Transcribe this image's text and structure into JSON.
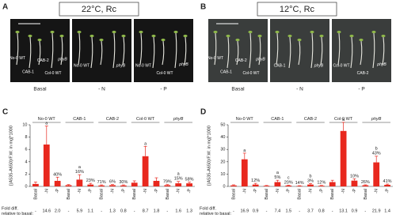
{
  "panels": [
    {
      "letter": "A",
      "title": "22°C, Rc",
      "photos": [
        {
          "caption": "Basal",
          "labels": [
            "No-0 WT",
            "CAB-1",
            "CAB-2",
            "Col-0 WT",
            "phyB"
          ]
        },
        {
          "caption": "- N",
          "labels": [
            "No-0 WT",
            "phyB"
          ]
        },
        {
          "caption": "- P",
          "labels": [
            "No-0 WT",
            "Col-0 WT",
            "phyB"
          ]
        }
      ]
    },
    {
      "letter": "B",
      "title": "12°C, Rc",
      "photos": [
        {
          "caption": "Basal",
          "labels": [
            "No-0 WT",
            "CAB-1",
            "CAB-2",
            "Col-0 WT",
            "phyB"
          ]
        },
        {
          "caption": "- N",
          "labels": [
            "CAB-1",
            "phyB"
          ]
        },
        {
          "caption": "- P",
          "labels": [
            "Col-0 WT",
            "CAB-2",
            "phyB"
          ]
        }
      ]
    }
  ],
  "chart_data": [
    {
      "type": "bar",
      "letter": "C",
      "y_label": "[(A535-A650)/F.W. in mg]*1000",
      "color": "#e8281e",
      "ylim": [
        0,
        10
      ],
      "yticks": [
        0,
        2,
        4,
        6,
        8,
        10
      ],
      "groups": [
        {
          "name": "No-0 WT"
        },
        {
          "name": "CAB-1"
        },
        {
          "name": "CAB-2"
        },
        {
          "name": "Col-0 WT"
        },
        {
          "name": "phyB",
          "italic": true
        }
      ],
      "categories": [
        "Basal",
        "-N",
        "-P",
        "Basal",
        "-N",
        "-P",
        "Basal",
        "-N",
        "-P",
        "Basal",
        "-N",
        "-P",
        "Basal",
        "-N",
        "-P"
      ],
      "values": [
        0.4,
        6.8,
        0.9,
        0.2,
        1.1,
        0.3,
        0.15,
        0.2,
        0.15,
        0.6,
        4.9,
        0.9,
        0.2,
        0.5,
        0.5
      ],
      "errors": [
        0.3,
        3.0,
        0.6,
        0.1,
        0.8,
        0.2,
        0.1,
        0.1,
        0.1,
        0.3,
        1.6,
        0.5,
        0.1,
        0.3,
        0.2
      ],
      "letters": [
        null,
        "a",
        null,
        null,
        "a",
        null,
        null,
        null,
        null,
        null,
        "a",
        null,
        null,
        "a",
        null
      ],
      "percents": [
        null,
        null,
        "40%",
        null,
        "16%",
        "23%",
        "71%",
        "6%",
        "30%",
        null,
        null,
        null,
        "79%",
        "15%",
        "58%"
      ],
      "fold_label": [
        "Fold diff.",
        "relative to basal:"
      ],
      "fold_diff": [
        "-",
        "14.6",
        "2.0",
        "-",
        "5.9",
        "1.1",
        "-",
        "1.3",
        "0.8",
        "-",
        "8.7",
        "1.8",
        "-",
        "1.6",
        "1.3"
      ]
    },
    {
      "type": "bar",
      "letter": "D",
      "y_label": "[(A535-A650)/F.W. in mg]*1000",
      "color": "#e8281e",
      "ylim": [
        0,
        50
      ],
      "yticks": [
        0,
        10,
        20,
        30,
        40,
        50
      ],
      "groups": [
        {
          "name": "No-0 WT"
        },
        {
          "name": "CAB-1"
        },
        {
          "name": "CAB-2"
        },
        {
          "name": "Col-0 WT"
        },
        {
          "name": "phyB",
          "italic": true
        }
      ],
      "categories": [
        "Basal",
        "-N",
        "-P",
        "Basal",
        "-N",
        "-P",
        "Basal",
        "-N",
        "-P",
        "Basal",
        "-N",
        "-P",
        "Basal",
        "-N",
        "-P"
      ],
      "values": [
        0.8,
        22,
        1.5,
        0.5,
        3.5,
        0.7,
        0.4,
        1.5,
        0.5,
        3.5,
        45,
        4.7,
        0.9,
        19.5,
        1.3
      ],
      "errors": [
        0.5,
        5,
        1,
        0.3,
        1.5,
        0.3,
        0.2,
        0.8,
        0.3,
        1.5,
        7,
        1.5,
        0.4,
        5,
        0.6
      ],
      "letters": [
        null,
        "a",
        null,
        null,
        "a",
        "c",
        null,
        "b",
        null,
        null,
        "a",
        null,
        null,
        "b",
        null
      ],
      "percents": [
        null,
        null,
        "12%",
        null,
        "5%",
        "20%",
        "14%",
        "3%",
        "12%",
        null,
        null,
        "10%",
        "26%",
        "43%",
        "41%"
      ],
      "fold_label": [
        "Fold diff.",
        "relative to basal:"
      ],
      "fold_diff": [
        "-",
        "16.9",
        "0.9",
        "-",
        "7.4",
        "1.5",
        "-",
        "3.7",
        "0.8",
        "-",
        "13.1",
        "0.9",
        "-",
        "21.9",
        "1.4"
      ]
    }
  ]
}
